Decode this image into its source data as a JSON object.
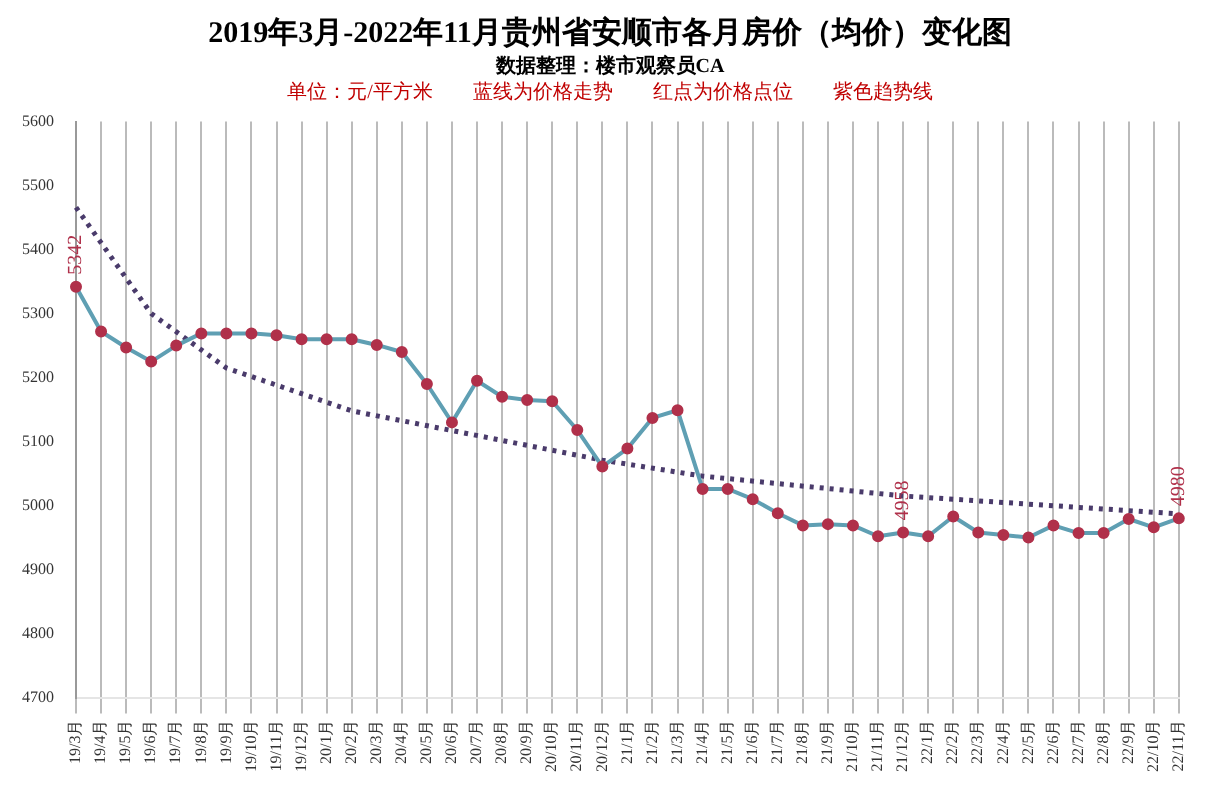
{
  "chart_data": {
    "type": "line",
    "title": "2019年3月-2022年11月贵州省安顺市各月房价（均价）变化图",
    "subtitle": "数据整理：楼市观察员CA",
    "annotations": [
      "单位：元/平方米　　蓝线为价格走势　　红点为价格点位　　紫色趋势线"
    ],
    "categories": [
      "19/3月",
      "19/4月",
      "19/5月",
      "19/6月",
      "19/7月",
      "19/8月",
      "19/9月",
      "19/10月",
      "19/11月",
      "19/12月",
      "20/1月",
      "20/2月",
      "20/3月",
      "20/4月",
      "20/5月",
      "20/6月",
      "20/7月",
      "20/8月",
      "20/9月",
      "20/10月",
      "20/11月",
      "20/12月",
      "21/1月",
      "21/2月",
      "21/3月",
      "21/4月",
      "21/5月",
      "21/6月",
      "21/7月",
      "21/8月",
      "21/9月",
      "21/10月",
      "21/11月",
      "21/12月",
      "22/1月",
      "22/2月",
      "22/3月",
      "22/4月",
      "22/5月",
      "22/6月",
      "22/7月",
      "22/8月",
      "22/9月",
      "22/10月",
      "22/11月"
    ],
    "series": [
      {
        "color": "#5f9fb3",
        "marker": "circle",
        "line_style": "solid",
        "colors": [
          "#b0304a",
          "#b0304a",
          "#b0304a",
          "#b0304a",
          "#b0304a",
          "#b0304a",
          "#b0304a",
          "#b0304a",
          "#b0304a",
          "#b0304a",
          "#b0304a",
          "#b0304a",
          "#b0304a",
          "#b0304a",
          "#b0304a",
          "#b0304a",
          "#b0304a",
          "#b0304a",
          "#b0304a",
          "#b0304a",
          "#b0304a",
          "#b0304a",
          "#b0304a",
          "#b0304a",
          "#b0304a",
          "#b0304a",
          "#b0304a",
          "#b0304a",
          "#b0304a",
          "#b0304a",
          "#b0304a",
          "#b0304a",
          "#b0304a",
          "#b0304a",
          "#b0304a",
          "#b0304a",
          "#b0304a",
          "#b0304a",
          "#b0304a",
          "#b0304a",
          "#b0304a",
          "#b0304a",
          "#b0304a",
          "#b0304a",
          "#b0304a"
        ],
        "values": [
          5342,
          5272,
          5247,
          5225,
          5250,
          5269,
          5269,
          5269,
          5266,
          5260,
          5260,
          5260,
          5251,
          5240,
          5190,
          5130,
          5195,
          5170,
          5165,
          5163,
          5118,
          5061,
          5089,
          5137,
          5149,
          5026,
          5026,
          5010,
          4988,
          4969,
          4971,
          4969,
          4952,
          4958,
          4952,
          4983,
          4958,
          4954,
          4950,
          4969,
          4957,
          4957,
          4979,
          4966,
          4980
        ],
        "value_labels": [
          "5342",
          null,
          null,
          null,
          null,
          null,
          null,
          null,
          null,
          null,
          null,
          null,
          null,
          null,
          null,
          null,
          null,
          null,
          null,
          null,
          null,
          null,
          null,
          null,
          null,
          null,
          null,
          null,
          null,
          null,
          null,
          null,
          null,
          "4958",
          null,
          null,
          null,
          null,
          null,
          null,
          null,
          null,
          null,
          null,
          "4980"
        ]
      },
      {
        "color": "#4a3b6b",
        "marker": "none",
        "line_style": "dotted",
        "x": [
          "19/3月",
          "19/6月",
          "19/9月",
          "20/2月",
          "20/12月",
          "21/4月",
          "21/12月",
          "22/11月"
        ],
        "values": [
          5466,
          5300,
          5215,
          5148,
          5071,
          5046,
          5015,
          4987
        ]
      }
    ],
    "ylim": [
      4700,
      5600
    ],
    "yticks": [
      4700,
      4800,
      4900,
      5000,
      5100,
      5200,
      5300,
      5400,
      5500,
      5600
    ],
    "grid": "x",
    "legend": false
  }
}
